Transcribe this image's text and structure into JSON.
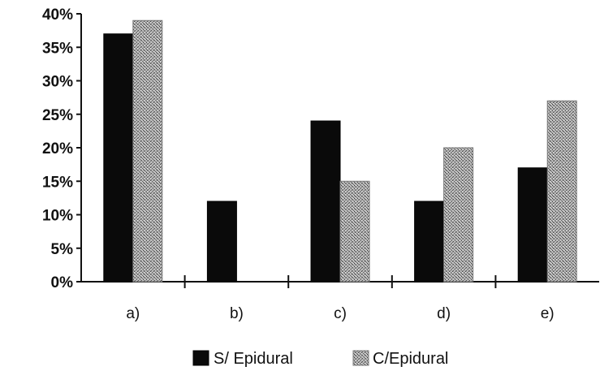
{
  "chart_data": {
    "type": "bar",
    "title": "",
    "xlabel": "",
    "ylabel": "",
    "categories": [
      "a)",
      "b)",
      "c)",
      "d)",
      "e)"
    ],
    "series": [
      {
        "name": "S/ Epidural",
        "values": [
          37,
          12,
          24,
          12,
          17
        ],
        "color": "#0a0a0a",
        "pattern": "solid"
      },
      {
        "name": "C/Epidural",
        "values": [
          39,
          0,
          15,
          20,
          27
        ],
        "color": "#8a8a8a",
        "pattern": "stipple"
      }
    ],
    "ylim": [
      0,
      40
    ],
    "yticks": [
      0,
      5,
      10,
      15,
      20,
      25,
      30,
      35,
      40
    ],
    "ytick_labels": [
      "0%",
      "5%",
      "10%",
      "15%",
      "20%",
      "25%",
      "30%",
      "35%",
      "40%"
    ],
    "grid": false,
    "legend": "bottom-center"
  }
}
